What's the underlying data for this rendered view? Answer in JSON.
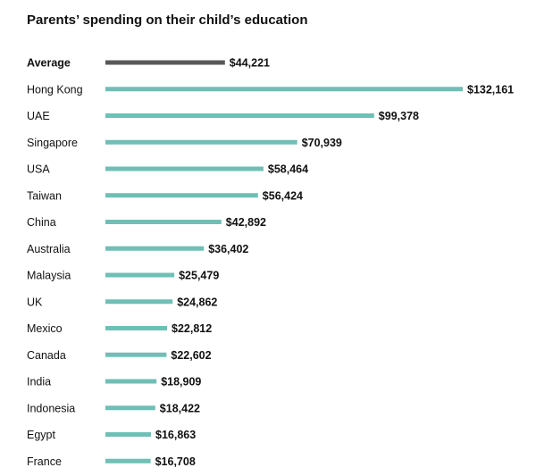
{
  "chart_data": {
    "type": "bar",
    "orientation": "horizontal",
    "title": "Parents’ spending on their child’s education",
    "xlabel": "",
    "ylabel": "",
    "grid": false,
    "categories": [
      "Average",
      "Hong Kong",
      "UAE",
      "Singapore",
      "USA",
      "Taiwan",
      "China",
      "Australia",
      "Malaysia",
      "UK",
      "Mexico",
      "Canada",
      "India",
      "Indonesia",
      "Egypt",
      "France"
    ],
    "values": [
      44221,
      132161,
      99378,
      70939,
      58464,
      56424,
      42892,
      36402,
      25479,
      24862,
      22812,
      22602,
      18909,
      18422,
      16863,
      16708
    ],
    "value_labels": [
      "$44,221",
      "$132,161",
      "$99,378",
      "$70,939",
      "$58,464",
      "$56,424",
      "$42,892",
      "$36,402",
      "$25,479",
      "$24,862",
      "$22,812",
      "$22,602",
      "$18,909",
      "$18,422",
      "$16,863",
      "$16,708"
    ],
    "highlight_category": "Average",
    "colors": {
      "highlight": "#58595b",
      "bar": "#6fbfb6"
    },
    "xlim": [
      0,
      132161
    ]
  }
}
